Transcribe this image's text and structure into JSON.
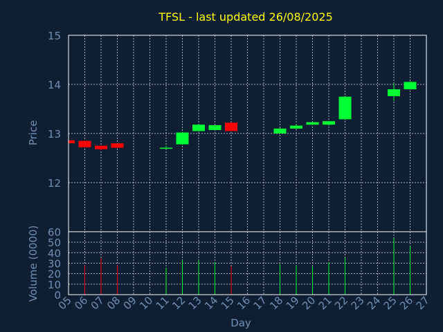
{
  "chart_data": [
    {
      "type": "candlestick",
      "title": "TFSL - last updated 26/08/2025",
      "ylabel": "Price",
      "ylim": [
        11,
        15
      ],
      "yticks": [
        12,
        13,
        14,
        15
      ],
      "grid": true,
      "up_color": "#00ff33",
      "down_color": "#ff0000",
      "candles": [
        {
          "day": "05",
          "x": 5,
          "open": 12.86,
          "close": 12.8,
          "high": 12.87,
          "low": 12.79
        },
        {
          "day": "06",
          "x": 6,
          "open": 12.85,
          "close": 12.72,
          "high": 12.86,
          "low": 12.71
        },
        {
          "day": "07",
          "x": 7,
          "open": 12.75,
          "close": 12.68,
          "high": 12.76,
          "low": 12.66
        },
        {
          "day": "08",
          "x": 8,
          "open": 12.8,
          "close": 12.71,
          "high": 12.81,
          "low": 12.7
        },
        {
          "day": "11",
          "x": 11,
          "open": 12.69,
          "close": 12.71,
          "high": 12.75,
          "low": 12.68
        },
        {
          "day": "12",
          "x": 12,
          "open": 12.78,
          "close": 13.02,
          "high": 13.03,
          "low": 12.77
        },
        {
          "day": "13",
          "x": 13,
          "open": 13.05,
          "close": 13.18,
          "high": 13.19,
          "low": 13.04
        },
        {
          "day": "14",
          "x": 14,
          "open": 13.07,
          "close": 13.17,
          "high": 13.18,
          "low": 13.06
        },
        {
          "day": "15",
          "x": 15,
          "open": 13.22,
          "close": 13.05,
          "high": 13.23,
          "low": 13.04
        },
        {
          "day": "18",
          "x": 18,
          "open": 13.0,
          "close": 13.1,
          "high": 13.11,
          "low": 12.99
        },
        {
          "day": "19",
          "x": 19,
          "open": 13.1,
          "close": 13.16,
          "high": 13.19,
          "low": 13.09
        },
        {
          "day": "20",
          "x": 20,
          "open": 13.18,
          "close": 13.23,
          "high": 13.24,
          "low": 13.17
        },
        {
          "day": "21",
          "x": 21,
          "open": 13.18,
          "close": 13.25,
          "high": 13.26,
          "low": 13.16
        },
        {
          "day": "22",
          "x": 22,
          "open": 13.29,
          "close": 13.75,
          "high": 13.76,
          "low": 13.28
        },
        {
          "day": "25",
          "x": 25,
          "open": 13.76,
          "close": 13.9,
          "high": 14.02,
          "low": 13.66
        },
        {
          "day": "26",
          "x": 26,
          "open": 13.9,
          "close": 14.05,
          "high": 14.06,
          "low": 13.89
        }
      ]
    },
    {
      "type": "bar",
      "ylabel": "Volume (0000)",
      "xlabel": "Day",
      "ylim": [
        0,
        60
      ],
      "yticks": [
        0,
        10,
        20,
        30,
        40,
        50,
        60
      ],
      "grid": true,
      "xticks": [
        "05",
        "06",
        "07",
        "08",
        "09",
        "10",
        "11",
        "12",
        "13",
        "14",
        "15",
        "16",
        "17",
        "18",
        "19",
        "20",
        "21",
        "22",
        "23",
        "24",
        "25",
        "26",
        "27"
      ],
      "bars": [
        {
          "day": "06",
          "x": 6,
          "value": 28,
          "color": "#ff0000"
        },
        {
          "day": "07",
          "x": 7,
          "value": 35,
          "color": "#ff0000"
        },
        {
          "day": "08",
          "x": 8,
          "value": 28,
          "color": "#ff0000"
        },
        {
          "day": "11",
          "x": 11,
          "value": 26,
          "color": "#00ff33"
        },
        {
          "day": "12",
          "x": 12,
          "value": 33,
          "color": "#00ff33"
        },
        {
          "day": "13",
          "x": 13,
          "value": 33,
          "color": "#00ff33"
        },
        {
          "day": "14",
          "x": 14,
          "value": 31,
          "color": "#00ff33"
        },
        {
          "day": "15",
          "x": 15,
          "value": 27,
          "color": "#ff0000"
        },
        {
          "day": "18",
          "x": 18,
          "value": 29,
          "color": "#00ff33"
        },
        {
          "day": "19",
          "x": 19,
          "value": 28,
          "color": "#00ff33"
        },
        {
          "day": "20",
          "x": 20,
          "value": 27,
          "color": "#00ff33"
        },
        {
          "day": "21",
          "x": 21,
          "value": 31,
          "color": "#00ff33"
        },
        {
          "day": "22",
          "x": 22,
          "value": 35,
          "color": "#00ff33"
        },
        {
          "day": "25",
          "x": 25,
          "value": 54,
          "color": "#00ff33"
        },
        {
          "day": "26",
          "x": 26,
          "value": 46,
          "color": "#00ff33"
        }
      ]
    }
  ]
}
